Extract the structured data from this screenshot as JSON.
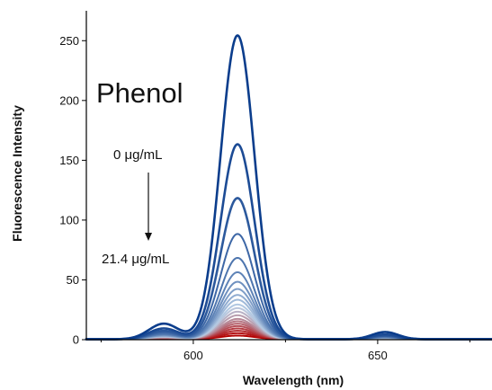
{
  "chart_data": {
    "type": "line",
    "xlabel": "Wavelength (nm)",
    "ylabel": "Fluorescence Intensity",
    "xlim": [
      571,
      681
    ],
    "ylim": [
      0,
      275
    ],
    "x_ticks": [
      600,
      650
    ],
    "y_ticks": [
      0,
      50,
      100,
      150,
      200,
      250
    ],
    "grid": false,
    "legend": "none",
    "annotations": {
      "analyte": "Phenol",
      "concentration_start": "0 μg/mL",
      "concentration_end": "21.4 μg/mL"
    },
    "peaks_nm": {
      "main": 612,
      "minor_left": 592,
      "minor_right": 652
    },
    "colors": {
      "start": "#0b3d8c",
      "middle": "#b9cfe6",
      "end": "#b30000"
    },
    "series": [
      {
        "peak_intensity": 254,
        "minor_left_intensity": 13,
        "minor_right_intensity": 6.0
      },
      {
        "peak_intensity": 163,
        "minor_left_intensity": 9.0,
        "minor_right_intensity": 4.0
      },
      {
        "peak_intensity": 118,
        "minor_left_intensity": 7.0,
        "minor_right_intensity": 3.0
      },
      {
        "peak_intensity": 88,
        "minor_left_intensity": 5.5,
        "minor_right_intensity": 2.5
      },
      {
        "peak_intensity": 68,
        "minor_left_intensity": 4.5,
        "minor_right_intensity": 2.0
      },
      {
        "peak_intensity": 56,
        "minor_left_intensity": 4.0,
        "minor_right_intensity": 1.8
      },
      {
        "peak_intensity": 48,
        "minor_left_intensity": 3.5,
        "minor_right_intensity": 1.5
      },
      {
        "peak_intensity": 42,
        "minor_left_intensity": 3.0,
        "minor_right_intensity": 1.4
      },
      {
        "peak_intensity": 37,
        "minor_left_intensity": 2.8,
        "minor_right_intensity": 1.2
      },
      {
        "peak_intensity": 33,
        "minor_left_intensity": 2.5,
        "minor_right_intensity": 1.1
      },
      {
        "peak_intensity": 29,
        "minor_left_intensity": 2.3,
        "minor_right_intensity": 1.0
      },
      {
        "peak_intensity": 26,
        "minor_left_intensity": 2.1,
        "minor_right_intensity": 0.9
      },
      {
        "peak_intensity": 23,
        "minor_left_intensity": 1.9,
        "minor_right_intensity": 0.8
      },
      {
        "peak_intensity": 20,
        "minor_left_intensity": 1.7,
        "minor_right_intensity": 0.7
      },
      {
        "peak_intensity": 17,
        "minor_left_intensity": 1.5,
        "minor_right_intensity": 0.6
      },
      {
        "peak_intensity": 15,
        "minor_left_intensity": 1.3,
        "minor_right_intensity": 0.5
      },
      {
        "peak_intensity": 13,
        "minor_left_intensity": 1.1,
        "minor_right_intensity": 0.5
      },
      {
        "peak_intensity": 11,
        "minor_left_intensity": 1.0,
        "minor_right_intensity": 0.4
      },
      {
        "peak_intensity": 9,
        "minor_left_intensity": 0.9,
        "minor_right_intensity": 0.4
      },
      {
        "peak_intensity": 7,
        "minor_left_intensity": 0.8,
        "minor_right_intensity": 0.3
      },
      {
        "peak_intensity": 5,
        "minor_left_intensity": 0.6,
        "minor_right_intensity": 0.3
      },
      {
        "peak_intensity": 3,
        "minor_left_intensity": 0.5,
        "minor_right_intensity": 0.2
      }
    ]
  }
}
